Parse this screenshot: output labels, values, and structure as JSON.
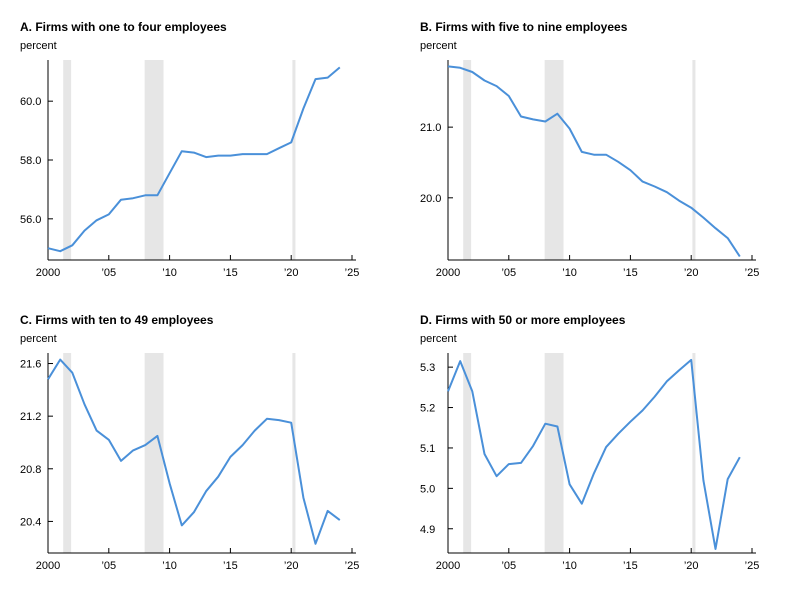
{
  "chart_data": [
    {
      "type": "line",
      "title": "A. Firms with one to four employees",
      "ylabel": "percent",
      "xlim": [
        2000,
        2025
      ],
      "ylim": [
        54.6,
        61.4
      ],
      "xticks": [
        2000,
        2005,
        2010,
        2015,
        2020,
        2025
      ],
      "xtick_labels": [
        "2000",
        "’05",
        "’10",
        "’15",
        "’20",
        "’25"
      ],
      "yticks": [
        56.0,
        58.0,
        60.0
      ],
      "ytick_labels": [
        "56.0",
        "58.0",
        "60.0"
      ],
      "grid": false,
      "recessions": [
        [
          2001.25,
          2001.9
        ],
        [
          2007.95,
          2009.5
        ],
        [
          2020.1,
          2020.35
        ]
      ],
      "color": "#4a90d9",
      "recession_color": "#e6e6e6",
      "x": [
        2000,
        2001,
        2002,
        2003,
        2004,
        2005,
        2006,
        2007,
        2008,
        2009,
        2010,
        2011,
        2012,
        2013,
        2014,
        2015,
        2016,
        2017,
        2018,
        2019,
        2020,
        2021,
        2022,
        2023,
        2024
      ],
      "values": [
        55.0,
        54.9,
        55.1,
        55.6,
        55.95,
        56.15,
        56.65,
        56.7,
        56.8,
        56.8,
        57.55,
        58.3,
        58.25,
        58.1,
        58.15,
        58.15,
        58.2,
        58.2,
        58.2,
        58.4,
        58.6,
        59.75,
        60.75,
        60.8,
        61.15
      ]
    },
    {
      "type": "line",
      "title": "B. Firms with five to nine employees",
      "ylabel": "percent",
      "xlim": [
        2000,
        2025
      ],
      "ylim": [
        19.12,
        21.95
      ],
      "xticks": [
        2000,
        2005,
        2010,
        2015,
        2020,
        2025
      ],
      "xtick_labels": [
        "2000",
        "’05",
        "’10",
        "’15",
        "’20",
        "’25"
      ],
      "yticks": [
        20.0,
        21.0
      ],
      "ytick_labels": [
        "20.0",
        "21.0"
      ],
      "grid": false,
      "recessions": [
        [
          2001.25,
          2001.9
        ],
        [
          2007.95,
          2009.5
        ],
        [
          2020.1,
          2020.35
        ]
      ],
      "color": "#4a90d9",
      "recession_color": "#e6e6e6",
      "x": [
        2000,
        2001,
        2002,
        2003,
        2004,
        2005,
        2006,
        2007,
        2008,
        2009,
        2010,
        2011,
        2012,
        2013,
        2014,
        2015,
        2016,
        2017,
        2018,
        2019,
        2020,
        2021,
        2022,
        2023,
        2024
      ],
      "values": [
        21.86,
        21.84,
        21.78,
        21.66,
        21.58,
        21.44,
        21.15,
        21.11,
        21.08,
        21.19,
        20.98,
        20.65,
        20.61,
        20.61,
        20.51,
        20.39,
        20.23,
        20.16,
        20.08,
        19.96,
        19.86,
        19.72,
        19.57,
        19.43,
        19.17
      ]
    },
    {
      "type": "line",
      "title": "C. Firms with ten to 49 employees",
      "ylabel": "percent",
      "xlim": [
        2000,
        2025
      ],
      "ylim": [
        20.16,
        21.68
      ],
      "xticks": [
        2000,
        2005,
        2010,
        2015,
        2020,
        2025
      ],
      "xtick_labels": [
        "2000",
        "’05",
        "’10",
        "’15",
        "’20",
        "’25"
      ],
      "yticks": [
        20.4,
        20.8,
        21.2,
        21.6
      ],
      "ytick_labels": [
        "20.4",
        "20.8",
        "21.2",
        "21.6"
      ],
      "grid": false,
      "recessions": [
        [
          2001.25,
          2001.9
        ],
        [
          2007.95,
          2009.5
        ],
        [
          2020.1,
          2020.35
        ]
      ],
      "color": "#4a90d9",
      "recession_color": "#e6e6e6",
      "x": [
        2000,
        2001,
        2002,
        2003,
        2004,
        2005,
        2006,
        2007,
        2008,
        2009,
        2010,
        2011,
        2012,
        2013,
        2014,
        2015,
        2016,
        2017,
        2018,
        2019,
        2020,
        2021,
        2022,
        2023,
        2024
      ],
      "values": [
        21.48,
        21.63,
        21.53,
        21.29,
        21.09,
        21.02,
        20.86,
        20.94,
        20.98,
        21.05,
        20.69,
        20.37,
        20.47,
        20.63,
        20.74,
        20.89,
        20.98,
        21.09,
        21.18,
        21.17,
        21.15,
        20.58,
        20.23,
        20.48,
        20.41
      ]
    },
    {
      "type": "line",
      "title": "D. Firms with 50 or more employees",
      "ylabel": "percent",
      "xlim": [
        2000,
        2025
      ],
      "ylim": [
        4.84,
        5.335
      ],
      "xticks": [
        2000,
        2005,
        2010,
        2015,
        2020,
        2025
      ],
      "xtick_labels": [
        "2000",
        "’05",
        "’10",
        "’15",
        "’20",
        "’25"
      ],
      "yticks": [
        4.9,
        5.0,
        5.1,
        5.2,
        5.3
      ],
      "ytick_labels": [
        "4.9",
        "5.0",
        "5.1",
        "5.2",
        "5.3"
      ],
      "grid": false,
      "recessions": [
        [
          2001.25,
          2001.9
        ],
        [
          2007.95,
          2009.5
        ],
        [
          2020.1,
          2020.35
        ]
      ],
      "color": "#4a90d9",
      "recession_color": "#e6e6e6",
      "x": [
        2000,
        2001,
        2002,
        2003,
        2004,
        2005,
        2006,
        2007,
        2008,
        2009,
        2010,
        2011,
        2012,
        2013,
        2014,
        2015,
        2016,
        2017,
        2018,
        2019,
        2020,
        2021,
        2022,
        2023,
        2024
      ],
      "values": [
        5.24,
        5.315,
        5.24,
        5.085,
        5.03,
        5.06,
        5.063,
        5.105,
        5.16,
        5.153,
        5.01,
        4.962,
        5.037,
        5.102,
        5.135,
        5.165,
        5.193,
        5.227,
        5.265,
        5.292,
        5.318,
        5.02,
        4.85,
        5.023,
        5.077
      ]
    }
  ]
}
